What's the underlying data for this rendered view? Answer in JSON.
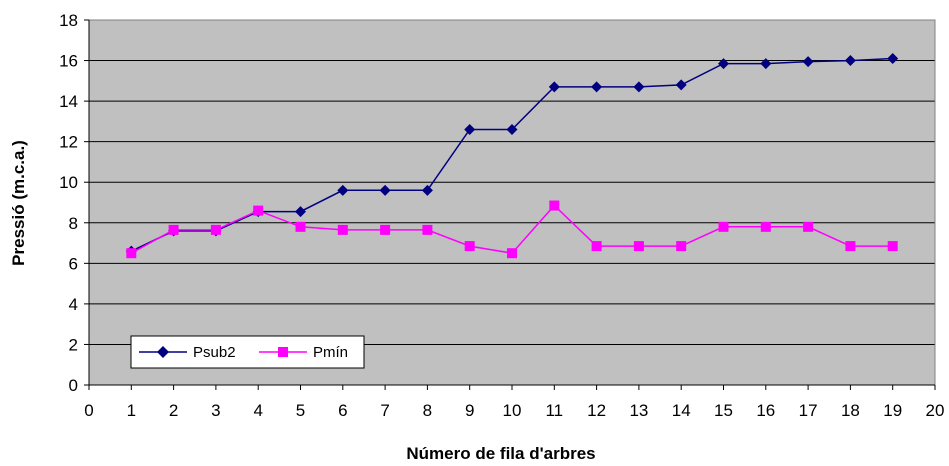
{
  "chart_data": {
    "type": "line",
    "title": "",
    "xlabel": "Número de fila d'arbres",
    "ylabel": "Pressió (m.c.a.)",
    "xlim": [
      0,
      20
    ],
    "ylim": [
      0,
      18
    ],
    "x_ticks": [
      "0",
      "1",
      "2",
      "3",
      "4",
      "5",
      "6",
      "7",
      "8",
      "9",
      "10",
      "11",
      "12",
      "13",
      "14",
      "15",
      "16",
      "17",
      "18",
      "19",
      "20"
    ],
    "y_ticks": [
      "0",
      "2",
      "4",
      "6",
      "8",
      "10",
      "12",
      "14",
      "16",
      "18"
    ],
    "grid": "horizontal",
    "legend_position": "bottom-left",
    "plot_background": "#c0c0c0",
    "x": [
      1,
      2,
      3,
      4,
      5,
      6,
      7,
      8,
      9,
      10,
      11,
      12,
      13,
      14,
      15,
      16,
      17,
      18,
      19
    ],
    "series": [
      {
        "name": "Psub2",
        "color": "#000080",
        "marker": "diamond",
        "values": [
          6.6,
          7.6,
          7.6,
          8.55,
          8.55,
          9.6,
          9.6,
          9.6,
          12.6,
          12.6,
          14.7,
          14.7,
          14.7,
          14.8,
          15.85,
          15.85,
          15.95,
          16.0,
          16.1
        ]
      },
      {
        "name": "Pmín",
        "color": "#ff00ff",
        "marker": "square",
        "values": [
          6.5,
          7.65,
          7.65,
          8.6,
          7.8,
          7.65,
          7.65,
          7.65,
          6.85,
          6.5,
          8.85,
          6.85,
          6.85,
          6.85,
          7.8,
          7.8,
          7.8,
          6.85,
          6.85
        ]
      }
    ]
  }
}
